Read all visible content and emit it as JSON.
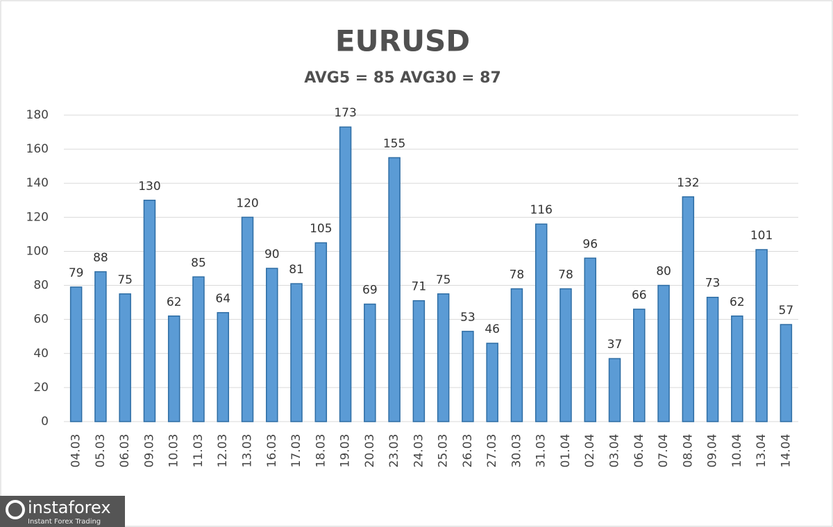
{
  "chart_data": {
    "type": "bar",
    "title": "EURUSD",
    "subtitle": "AVG5 = 85 AVG30 = 87",
    "categories": [
      "04.03",
      "05.03",
      "06.03",
      "09.03",
      "10.03",
      "11.03",
      "12.03",
      "13.03",
      "16.03",
      "17.03",
      "18.03",
      "19.03",
      "20.03",
      "23.03",
      "24.03",
      "25.03",
      "26.03",
      "27.03",
      "30.03",
      "31.03",
      "01.04",
      "02.04",
      "03.04",
      "06.04",
      "07.04",
      "08.04",
      "09.04",
      "10.04",
      "13.04",
      "14.04"
    ],
    "values": [
      79,
      88,
      75,
      130,
      62,
      85,
      64,
      120,
      90,
      81,
      105,
      173,
      69,
      155,
      71,
      75,
      53,
      46,
      78,
      116,
      78,
      96,
      37,
      66,
      80,
      132,
      73,
      62,
      101,
      57
    ],
    "color": "#5b9bd5",
    "ylim": [
      0,
      180
    ],
    "yticks": [
      0,
      20,
      40,
      60,
      80,
      100,
      120,
      140,
      160,
      180
    ],
    "grid": true
  },
  "logo": {
    "name": "instaforex",
    "tagline": "Instant Forex Trading"
  }
}
